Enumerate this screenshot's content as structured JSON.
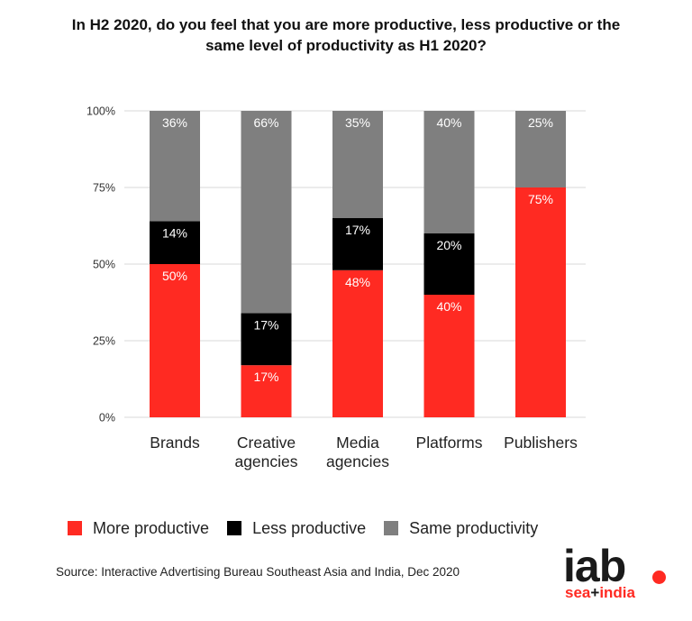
{
  "title": {
    "line1": "In H2 2020, do you feel that you are more productive, less productive or the",
    "line2": "same level of productivity as H1 2020?"
  },
  "colors": {
    "more": "#ff2a22",
    "less": "#000000",
    "same": "#7f7f7f",
    "grid": "#d9d9d9",
    "brand_red": "#ff2a22",
    "brand_dark": "#1a1a1a"
  },
  "chart_data": {
    "type": "bar",
    "stacked": true,
    "categories": [
      [
        "Brands"
      ],
      [
        "Creative",
        "agencies"
      ],
      [
        "Media",
        "agencies"
      ],
      [
        "Platforms"
      ],
      [
        "Publishers"
      ]
    ],
    "series": [
      {
        "name": "More productive",
        "values": [
          50,
          17,
          48,
          40,
          75
        ],
        "labels": [
          "50%",
          "17%",
          "48%",
          "40%",
          "75%"
        ]
      },
      {
        "name": "Less productive",
        "values": [
          14,
          17,
          17,
          20,
          0
        ],
        "labels": [
          "14%",
          "17%",
          "17%",
          "20%",
          ""
        ]
      },
      {
        "name": "Same productivity",
        "values": [
          36,
          66,
          35,
          40,
          25
        ],
        "labels": [
          "36%",
          "66%",
          "35%",
          "40%",
          "25%"
        ]
      }
    ],
    "ylim": [
      0,
      100
    ],
    "yticks": [
      0,
      25,
      50,
      75,
      100
    ],
    "ytick_labels": [
      "0%",
      "25%",
      "50%",
      "75%",
      "100%"
    ],
    "grid": true,
    "legend_position": "bottom"
  },
  "legend": {
    "more": "More productive",
    "less": "Less productive",
    "same": "Same productivity"
  },
  "source": "Source: Interactive Advertising Bureau Southeast Asia and India, Dec 2020",
  "logo": {
    "main": "iab",
    "sub_left": "sea",
    "plus": "+",
    "sub_right": "india"
  }
}
